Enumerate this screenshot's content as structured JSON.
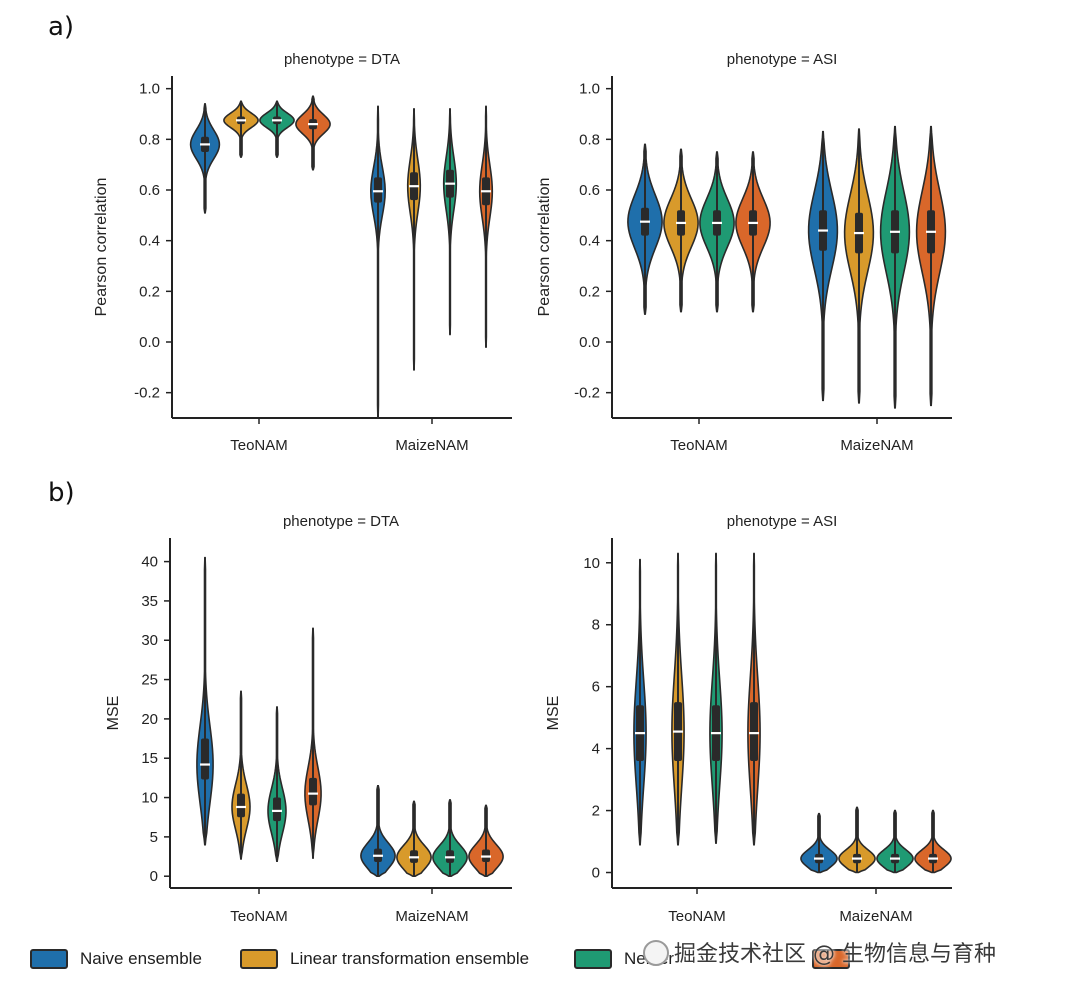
{
  "panel_labels": {
    "a": "a)",
    "b": "b)"
  },
  "colors": {
    "naive": "#1f6fab",
    "linear": "#d89a2b",
    "nelder": "#1f9a73",
    "fourth": "#d9672a",
    "body": "#2a2a2a",
    "median": "#ffffff"
  },
  "legend": {
    "items": [
      {
        "label": "Naive ensemble",
        "color": "#1f6fab"
      },
      {
        "label": "Linear transformation ensemble",
        "color": "#d89a2b"
      },
      {
        "label": "Nelder",
        "color": "#1f9a73"
      },
      {
        "label": "",
        "color": "#d9672a"
      }
    ]
  },
  "watermark": {
    "text": "掘金技术社区 @ 生物信息与育种"
  },
  "chart_data": [
    {
      "id": "a-DTA",
      "type": "violin",
      "title": "phenotype = DTA",
      "ylabel": "Pearson correlation",
      "ylim": [
        -0.3,
        1.05
      ],
      "yticks": [
        -0.2,
        0.0,
        0.2,
        0.4,
        0.6,
        0.8,
        1.0
      ],
      "ytick_labels": [
        "-0.2",
        "0.0",
        "0.2",
        "0.4",
        "0.6",
        "0.8",
        "1.0"
      ],
      "categories": [
        "TeoNAM",
        "MaizeNAM"
      ],
      "series_names": [
        "Naive ensemble",
        "Linear transformation ensemble",
        "Nelder",
        ""
      ],
      "groups": [
        {
          "category": "TeoNAM",
          "violins": [
            {
              "min": 0.51,
              "max": 0.94,
              "median": 0.78,
              "q1": 0.75,
              "q3": 0.81,
              "w": 0.8
            },
            {
              "min": 0.73,
              "max": 0.95,
              "median": 0.875,
              "q1": 0.86,
              "q3": 0.89,
              "w": 0.95
            },
            {
              "min": 0.73,
              "max": 0.95,
              "median": 0.875,
              "q1": 0.86,
              "q3": 0.89,
              "w": 0.95
            },
            {
              "min": 0.68,
              "max": 0.97,
              "median": 0.86,
              "q1": 0.84,
              "q3": 0.88,
              "w": 0.95
            }
          ]
        },
        {
          "category": "MaizeNAM",
          "violins": [
            {
              "min": -0.3,
              "max": 0.93,
              "median": 0.595,
              "q1": 0.55,
              "q3": 0.65,
              "w": 0.4
            },
            {
              "min": -0.11,
              "max": 0.92,
              "median": 0.615,
              "q1": 0.56,
              "q3": 0.67,
              "w": 0.35
            },
            {
              "min": 0.03,
              "max": 0.92,
              "median": 0.625,
              "q1": 0.57,
              "q3": 0.68,
              "w": 0.35
            },
            {
              "min": -0.02,
              "max": 0.93,
              "median": 0.595,
              "q1": 0.54,
              "q3": 0.65,
              "w": 0.35
            }
          ]
        }
      ]
    },
    {
      "id": "a-ASI",
      "type": "violin",
      "title": "phenotype = ASI",
      "ylabel": "Pearson correlation",
      "ylim": [
        -0.3,
        1.05
      ],
      "yticks": [
        -0.2,
        0.0,
        0.2,
        0.4,
        0.6,
        0.8,
        1.0
      ],
      "ytick_labels": [
        "-0.2",
        "0.0",
        "0.2",
        "0.4",
        "0.6",
        "0.8",
        "1.0"
      ],
      "categories": [
        "TeoNAM",
        "MaizeNAM"
      ],
      "series_names": [
        "Naive ensemble",
        "Linear transformation ensemble",
        "Nelder",
        ""
      ],
      "groups": [
        {
          "category": "TeoNAM",
          "violins": [
            {
              "min": 0.11,
              "max": 0.78,
              "median": 0.475,
              "q1": 0.42,
              "q3": 0.53,
              "w": 0.95
            },
            {
              "min": 0.12,
              "max": 0.76,
              "median": 0.47,
              "q1": 0.42,
              "q3": 0.52,
              "w": 0.95
            },
            {
              "min": 0.12,
              "max": 0.75,
              "median": 0.47,
              "q1": 0.42,
              "q3": 0.52,
              "w": 0.95
            },
            {
              "min": 0.12,
              "max": 0.75,
              "median": 0.47,
              "q1": 0.42,
              "q3": 0.52,
              "w": 0.95
            }
          ]
        },
        {
          "category": "MaizeNAM",
          "violins": [
            {
              "min": -0.23,
              "max": 0.83,
              "median": 0.44,
              "q1": 0.36,
              "q3": 0.52,
              "w": 0.8
            },
            {
              "min": -0.24,
              "max": 0.84,
              "median": 0.43,
              "q1": 0.35,
              "q3": 0.51,
              "w": 0.8
            },
            {
              "min": -0.26,
              "max": 0.85,
              "median": 0.435,
              "q1": 0.35,
              "q3": 0.52,
              "w": 0.8
            },
            {
              "min": -0.25,
              "max": 0.85,
              "median": 0.435,
              "q1": 0.35,
              "q3": 0.52,
              "w": 0.8
            }
          ]
        }
      ]
    },
    {
      "id": "b-DTA",
      "type": "violin",
      "title": "phenotype = DTA",
      "ylabel": "MSE",
      "ylim": [
        -1.5,
        43
      ],
      "yticks": [
        0,
        5,
        10,
        15,
        20,
        25,
        30,
        35,
        40
      ],
      "ytick_labels": [
        "0",
        "5",
        "10",
        "15",
        "20",
        "25",
        "30",
        "35",
        "40"
      ],
      "categories": [
        "TeoNAM",
        "MaizeNAM"
      ],
      "series_names": [
        "Naive ensemble",
        "Linear transformation ensemble",
        "Nelder",
        ""
      ],
      "groups": [
        {
          "category": "TeoNAM",
          "violins": [
            {
              "min": 4.0,
              "max": 40.5,
              "median": 14.2,
              "q1": 12.3,
              "q3": 17.5,
              "w": 0.45
            },
            {
              "min": 2.2,
              "max": 23.5,
              "median": 8.8,
              "q1": 7.5,
              "q3": 10.5,
              "w": 0.5
            },
            {
              "min": 1.9,
              "max": 21.5,
              "median": 8.3,
              "q1": 7.0,
              "q3": 10.0,
              "w": 0.5
            },
            {
              "min": 2.3,
              "max": 31.5,
              "median": 10.5,
              "q1": 9.0,
              "q3": 12.5,
              "w": 0.45
            }
          ]
        },
        {
          "category": "MaizeNAM",
          "violins": [
            {
              "min": 0.0,
              "max": 11.5,
              "median": 2.6,
              "q1": 1.8,
              "q3": 3.5,
              "w": 0.95
            },
            {
              "min": 0.0,
              "max": 9.5,
              "median": 2.4,
              "q1": 1.7,
              "q3": 3.3,
              "w": 0.95
            },
            {
              "min": 0.0,
              "max": 9.7,
              "median": 2.4,
              "q1": 1.7,
              "q3": 3.3,
              "w": 0.95
            },
            {
              "min": 0.0,
              "max": 9.0,
              "median": 2.5,
              "q1": 1.8,
              "q3": 3.4,
              "w": 0.95
            }
          ]
        }
      ]
    },
    {
      "id": "b-ASI",
      "type": "violin",
      "title": "phenotype = ASI",
      "ylabel": "MSE",
      "ylim": [
        -0.5,
        10.8
      ],
      "yticks": [
        0,
        2,
        4,
        6,
        8,
        10
      ],
      "ytick_labels": [
        "0",
        "2",
        "4",
        "6",
        "8",
        "10"
      ],
      "categories": [
        "TeoNAM",
        "MaizeNAM"
      ],
      "series_names": [
        "Naive ensemble",
        "Linear transformation ensemble",
        "Nelder",
        ""
      ],
      "groups": [
        {
          "category": "TeoNAM",
          "violins": [
            {
              "min": 0.9,
              "max": 10.1,
              "median": 4.5,
              "q1": 3.6,
              "q3": 5.4,
              "w": 0.32
            },
            {
              "min": 0.9,
              "max": 10.3,
              "median": 4.55,
              "q1": 3.6,
              "q3": 5.5,
              "w": 0.32
            },
            {
              "min": 0.95,
              "max": 10.3,
              "median": 4.5,
              "q1": 3.6,
              "q3": 5.4,
              "w": 0.32
            },
            {
              "min": 0.9,
              "max": 10.3,
              "median": 4.5,
              "q1": 3.6,
              "q3": 5.5,
              "w": 0.32
            }
          ]
        },
        {
          "category": "MaizeNAM",
          "violins": [
            {
              "min": 0.0,
              "max": 1.9,
              "median": 0.45,
              "q1": 0.3,
              "q3": 0.6,
              "w": 0.95
            },
            {
              "min": 0.0,
              "max": 2.1,
              "median": 0.45,
              "q1": 0.3,
              "q3": 0.6,
              "w": 0.95
            },
            {
              "min": 0.0,
              "max": 2.0,
              "median": 0.45,
              "q1": 0.3,
              "q3": 0.6,
              "w": 0.95
            },
            {
              "min": 0.0,
              "max": 2.0,
              "median": 0.45,
              "q1": 0.3,
              "q3": 0.6,
              "w": 0.95
            }
          ]
        }
      ]
    }
  ]
}
